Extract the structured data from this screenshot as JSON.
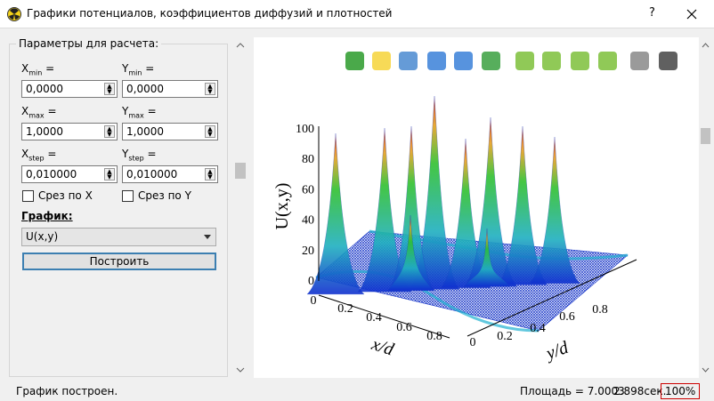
{
  "window": {
    "title": "Графики потенциалов, коэффициентов диффузий и плотностей",
    "help": "?"
  },
  "params": {
    "legend": "Параметры для расчета:",
    "equals": "=",
    "fields": [
      {
        "name": "X",
        "sub": "min",
        "value": "0,0000"
      },
      {
        "name": "Y",
        "sub": "min",
        "value": "0,0000"
      },
      {
        "name": "X",
        "sub": "max",
        "value": "1,0000"
      },
      {
        "name": "Y",
        "sub": "max",
        "value": "1,0000"
      },
      {
        "name": "X",
        "sub": "step",
        "value": "0,010000"
      },
      {
        "name": "Y",
        "sub": "step",
        "value": "0,010000"
      }
    ],
    "checkboxes": [
      "Срез по X",
      "Срез по Y"
    ],
    "graph_label": "График:",
    "graph_value": "U(x,y)",
    "button": "Построить"
  },
  "plot": {
    "z_label": "U(x,y)",
    "x_label": "x/d",
    "y_label": "y/d",
    "zticks": [
      "0",
      "20",
      "40",
      "60",
      "80",
      "100"
    ],
    "xticks": [
      "0",
      "0.2",
      "0.4",
      "0.6",
      "0.8"
    ],
    "yticks": [
      "0",
      "0.2",
      "0.4",
      "0.6",
      "0.8"
    ]
  },
  "status": {
    "message": "График построен.",
    "area": "Площадь = 7.0003",
    "time": "2.898сек.",
    "zoom": "100%"
  }
}
